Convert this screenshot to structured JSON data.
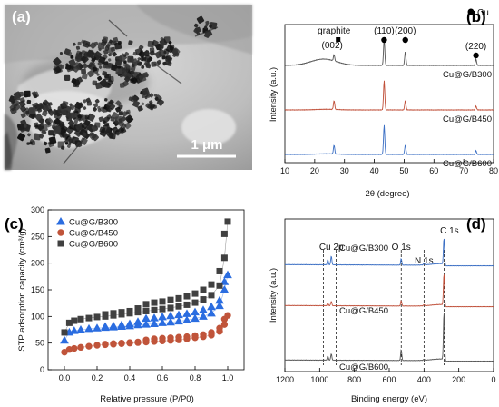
{
  "panels": {
    "a": {
      "label": "(a)",
      "scale_bar_text": "1 μm"
    },
    "b": {
      "label": "(b)",
      "legend_marker_label": "Cu",
      "peak_labels": [
        {
          "text": "graphite",
          "x": 26.5,
          "marker": "square"
        },
        {
          "text": "(002)",
          "x": 26.5,
          "marker": "none"
        },
        {
          "text": "(110)",
          "x": 43.3,
          "marker": "circle"
        },
        {
          "text": "(200)",
          "x": 50.4,
          "marker": "circle"
        },
        {
          "text": "(220)",
          "x": 74.1,
          "marker": "circle"
        }
      ]
    },
    "c": {
      "label": "(c)"
    },
    "d": {
      "label": "(d)",
      "peak_labels": [
        {
          "text": "Cu 2p",
          "x": 933
        },
        {
          "text": "O 1s",
          "x": 531
        },
        {
          "text": "N 1s",
          "x": 400
        },
        {
          "text": "C 1s",
          "x": 285
        }
      ]
    }
  },
  "chart_data": [
    {
      "panel": "b",
      "type": "line",
      "xlabel": "2θ (degree)",
      "ylabel": "Intensity (a.u.)",
      "xlim": [
        10,
        80
      ],
      "xticks": [
        10,
        20,
        30,
        40,
        50,
        60,
        70,
        80
      ],
      "series": [
        {
          "name": "Cu@G/B300",
          "color": "#555555",
          "peaks": [
            [
              26.5,
              0.1
            ],
            [
              43.3,
              0.42
            ],
            [
              50.4,
              0.22
            ],
            [
              74.1,
              0.1
            ]
          ],
          "hump": {
            "center": 23,
            "width": 6,
            "height": 0.1
          }
        },
        {
          "name": "Cu@G/B450",
          "color": "#c0503a",
          "peaks": [
            [
              26.5,
              0.14
            ],
            [
              43.3,
              0.46
            ],
            [
              50.4,
              0.15
            ],
            [
              74.1,
              0.06
            ]
          ],
          "hump": {
            "center": 24,
            "width": 5,
            "height": 0.01
          }
        },
        {
          "name": "Cu@G/B600",
          "color": "#3b6fc4",
          "peaks": [
            [
              26.5,
              0.14
            ],
            [
              43.3,
              0.46
            ],
            [
              50.4,
              0.15
            ],
            [
              74.1,
              0.06
            ]
          ],
          "hump": {
            "center": 24,
            "width": 5,
            "height": 0.01
          }
        }
      ]
    },
    {
      "panel": "c",
      "type": "scatter",
      "xlabel": "Relative pressure (P/P0)",
      "ylabel": "STP adsorption capacity (cm³/g)",
      "xlim": [
        -0.1,
        1.1
      ],
      "ylim": [
        0,
        300
      ],
      "xticks": [
        "0.0",
        "0.2",
        "0.4",
        "0.6",
        "0.8",
        "1.0"
      ],
      "yticks": [
        "0",
        "50",
        "100",
        "150",
        "200",
        "250",
        "300"
      ],
      "legend_position": "top-left",
      "series": [
        {
          "name": "Cu@G/B300",
          "marker": "triangle",
          "color": "#2b6de0",
          "adsorption": [
            [
              0.0,
              55
            ],
            [
              0.03,
              70
            ],
            [
              0.06,
              73
            ],
            [
              0.1,
              75
            ],
            [
              0.15,
              77
            ],
            [
              0.2,
              78
            ],
            [
              0.25,
              79
            ],
            [
              0.3,
              80
            ],
            [
              0.35,
              81
            ],
            [
              0.4,
              82
            ],
            [
              0.45,
              84
            ],
            [
              0.5,
              85
            ],
            [
              0.55,
              86
            ],
            [
              0.6,
              88
            ],
            [
              0.65,
              89
            ],
            [
              0.7,
              91
            ],
            [
              0.75,
              93
            ],
            [
              0.8,
              96
            ],
            [
              0.85,
              100
            ],
            [
              0.9,
              106
            ],
            [
              0.95,
              120
            ],
            [
              0.98,
              150
            ],
            [
              1.0,
              178
            ]
          ],
          "desorption": [
            [
              0.98,
              165
            ],
            [
              0.95,
              130
            ],
            [
              0.9,
              118
            ],
            [
              0.85,
              112
            ],
            [
              0.8,
              108
            ],
            [
              0.75,
              105
            ],
            [
              0.7,
              103
            ],
            [
              0.65,
              101
            ],
            [
              0.6,
              99
            ],
            [
              0.55,
              97
            ],
            [
              0.5,
              96
            ],
            [
              0.45,
              90
            ],
            [
              0.4,
              86
            ],
            [
              0.35,
              84
            ],
            [
              0.3,
              82
            ],
            [
              0.25,
              81
            ]
          ]
        },
        {
          "name": "Cu@G/B450",
          "marker": "circle",
          "color": "#c0543a",
          "adsorption": [
            [
              0.0,
              33
            ],
            [
              0.03,
              38
            ],
            [
              0.06,
              40
            ],
            [
              0.1,
              42
            ],
            [
              0.15,
              44
            ],
            [
              0.2,
              46
            ],
            [
              0.25,
              47
            ],
            [
              0.3,
              48
            ],
            [
              0.35,
              49
            ],
            [
              0.4,
              50
            ],
            [
              0.45,
              51
            ],
            [
              0.5,
              52
            ],
            [
              0.55,
              53
            ],
            [
              0.6,
              54
            ],
            [
              0.65,
              55
            ],
            [
              0.7,
              56
            ],
            [
              0.75,
              58
            ],
            [
              0.8,
              60
            ],
            [
              0.85,
              62
            ],
            [
              0.9,
              65
            ],
            [
              0.95,
              72
            ],
            [
              0.98,
              85
            ],
            [
              1.0,
              102
            ]
          ],
          "desorption": [
            [
              0.98,
              95
            ],
            [
              0.95,
              78
            ],
            [
              0.9,
              70
            ],
            [
              0.85,
              66
            ],
            [
              0.8,
              64
            ],
            [
              0.75,
              62
            ],
            [
              0.7,
              61
            ],
            [
              0.65,
              60
            ],
            [
              0.6,
              59
            ],
            [
              0.55,
              58
            ],
            [
              0.5,
              56
            ],
            [
              0.45,
              52
            ],
            [
              0.4,
              51
            ],
            [
              0.35,
              50
            ],
            [
              0.3,
              49
            ],
            [
              0.25,
              48
            ]
          ]
        },
        {
          "name": "Cu@G/B600",
          "marker": "square",
          "color": "#404040",
          "adsorption": [
            [
              0.0,
              70
            ],
            [
              0.03,
              88
            ],
            [
              0.06,
              92
            ],
            [
              0.1,
              95
            ],
            [
              0.15,
              97
            ],
            [
              0.2,
              99
            ],
            [
              0.25,
              100
            ],
            [
              0.3,
              102
            ],
            [
              0.35,
              104
            ],
            [
              0.4,
              106
            ],
            [
              0.45,
              108
            ],
            [
              0.5,
              110
            ],
            [
              0.55,
              112
            ],
            [
              0.6,
              114
            ],
            [
              0.65,
              116
            ],
            [
              0.7,
              119
            ],
            [
              0.75,
              122
            ],
            [
              0.8,
              126
            ],
            [
              0.85,
              132
            ],
            [
              0.9,
              140
            ],
            [
              0.95,
              158
            ],
            [
              0.98,
              210
            ],
            [
              1.0,
              278
            ]
          ],
          "desorption": [
            [
              0.98,
              255
            ],
            [
              0.95,
              185
            ],
            [
              0.9,
              160
            ],
            [
              0.85,
              150
            ],
            [
              0.8,
              143
            ],
            [
              0.75,
              138
            ],
            [
              0.7,
              134
            ],
            [
              0.65,
              131
            ],
            [
              0.6,
              128
            ],
            [
              0.55,
              126
            ],
            [
              0.5,
              123
            ],
            [
              0.45,
              115
            ],
            [
              0.4,
              110
            ],
            [
              0.35,
              108
            ],
            [
              0.3,
              106
            ],
            [
              0.25,
              104
            ]
          ]
        }
      ]
    },
    {
      "panel": "d",
      "type": "line",
      "xlabel": "Binding energy (eV)",
      "ylabel": "Intensity (a.u.)",
      "xlim": [
        1200,
        0
      ],
      "xticks": [
        1200,
        1000,
        800,
        600,
        400,
        200,
        0
      ],
      "reference_lines": [
        979,
        905,
        531,
        400,
        285
      ],
      "series": [
        {
          "name": "Cu@G/B300",
          "color": "#3b6fc4",
          "peaks": [
            [
              953,
              0.1
            ],
            [
              933,
              0.16
            ],
            [
              531,
              0.12
            ],
            [
              400,
              0.03
            ],
            [
              285,
              0.5
            ]
          ]
        },
        {
          "name": "Cu@G/B450",
          "color": "#c0503a",
          "peaks": [
            [
              953,
              0.05
            ],
            [
              933,
              0.08
            ],
            [
              531,
              0.1
            ],
            [
              400,
              0.02
            ],
            [
              285,
              0.6
            ]
          ]
        },
        {
          "name": "Cu@G/B600",
          "color": "#555555",
          "peaks": [
            [
              953,
              0.08
            ],
            [
              933,
              0.12
            ],
            [
              531,
              0.2
            ],
            [
              400,
              0.02
            ],
            [
              285,
              0.9
            ]
          ]
        }
      ]
    }
  ]
}
